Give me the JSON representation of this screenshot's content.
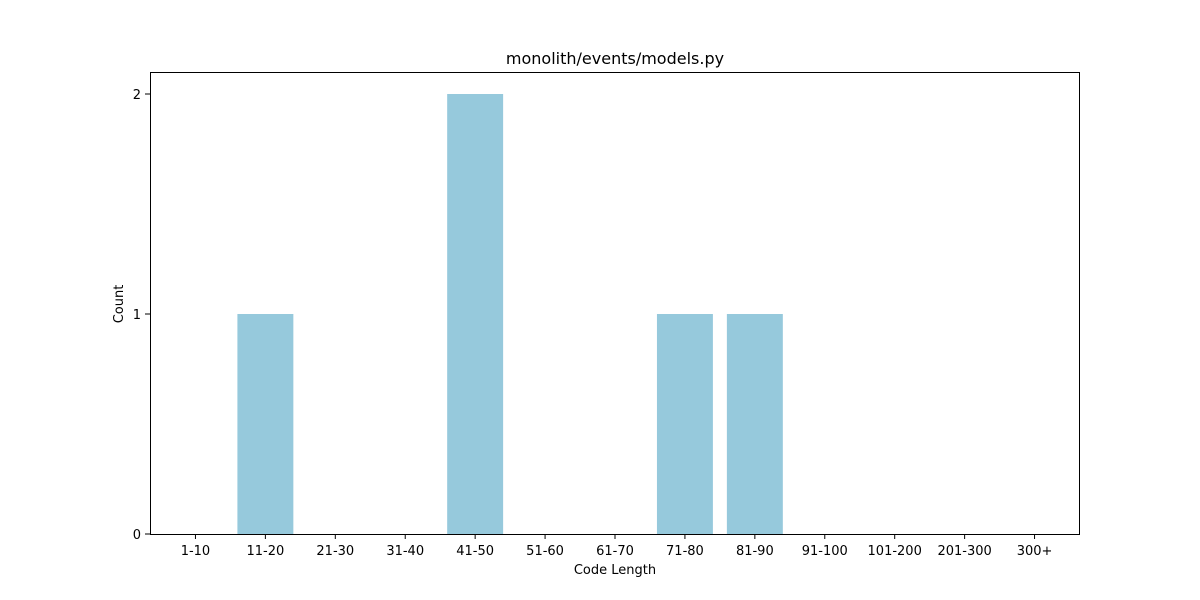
{
  "chart_data": {
    "type": "bar",
    "title": "monolith/events/models.py",
    "xlabel": "Code Length",
    "ylabel": "Count",
    "categories": [
      "1-10",
      "11-20",
      "21-30",
      "31-40",
      "41-50",
      "51-60",
      "61-70",
      "71-80",
      "81-90",
      "91-100",
      "101-200",
      "201-300",
      "300+"
    ],
    "values": [
      0,
      1,
      0,
      0,
      2,
      0,
      0,
      1,
      1,
      0,
      0,
      0,
      0
    ],
    "yticks": [
      0,
      1,
      2
    ],
    "ylim": [
      0,
      2.1
    ],
    "grid": false,
    "bar_color": "#96c9dc"
  }
}
